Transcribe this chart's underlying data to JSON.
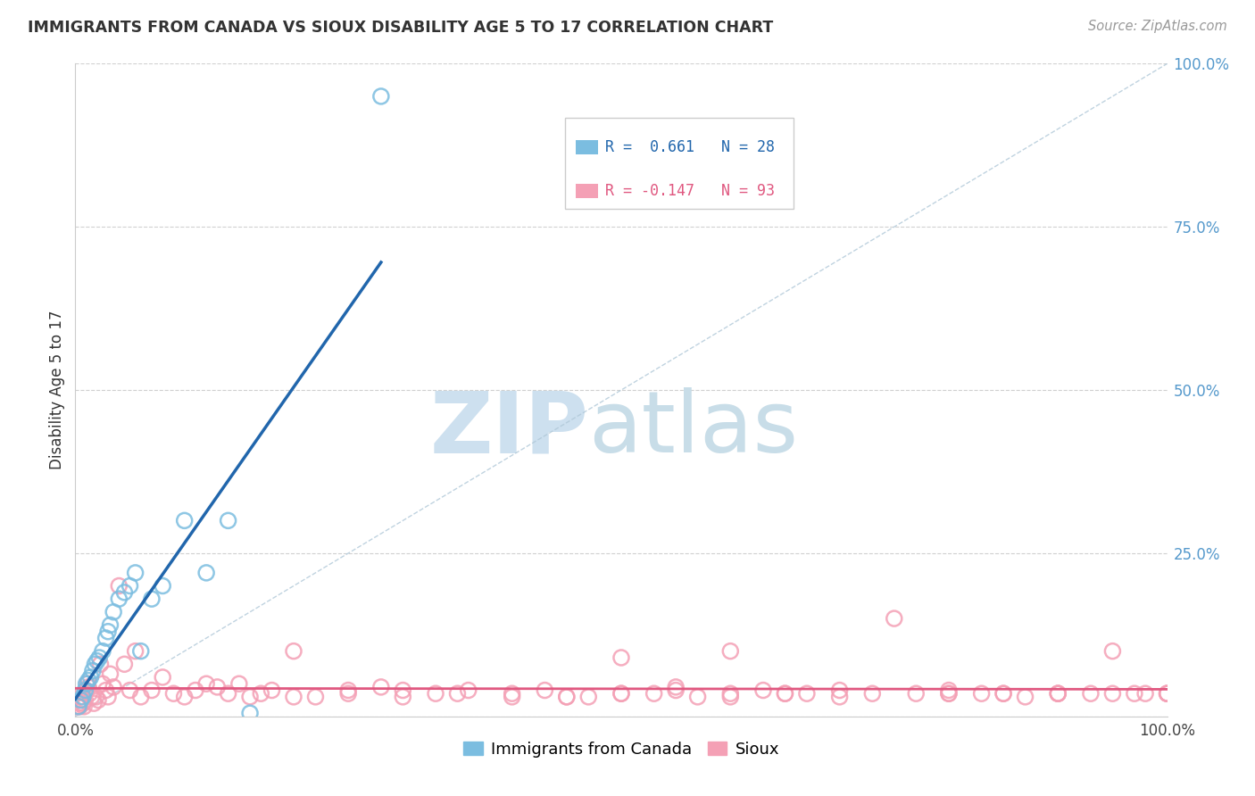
{
  "title": "IMMIGRANTS FROM CANADA VS SIOUX DISABILITY AGE 5 TO 17 CORRELATION CHART",
  "source": "Source: ZipAtlas.com",
  "ylabel": "Disability Age 5 to 17",
  "legend_label1": "Immigrants from Canada",
  "legend_label2": "Sioux",
  "r1": 0.661,
  "n1": 28,
  "r2": -0.147,
  "n2": 93,
  "color_blue": "#7bbde0",
  "color_pink": "#f4a0b5",
  "color_blue_line": "#2166ac",
  "color_pink_line": "#e05880",
  "watermark_zip_color": "#cde0ef",
  "watermark_atlas_color": "#c8dde8",
  "yticks": [
    0,
    25,
    50,
    75,
    100
  ],
  "ytick_labels": [
    "",
    "25.0%",
    "50.0%",
    "75.0%",
    "100.0%"
  ],
  "xtick_labels_left": "0.0%",
  "xtick_labels_right": "100.0%",
  "blue_x": [
    0.3,
    0.5,
    0.7,
    0.9,
    1.0,
    1.2,
    1.4,
    1.6,
    1.8,
    2.0,
    2.2,
    2.5,
    2.8,
    3.0,
    3.2,
    3.5,
    4.0,
    4.5,
    5.0,
    5.5,
    6.0,
    7.0,
    8.0,
    10.0,
    12.0,
    14.0,
    16.0,
    28.0
  ],
  "blue_y": [
    1.5,
    2.5,
    3.0,
    4.0,
    5.0,
    5.5,
    6.0,
    7.0,
    8.0,
    8.5,
    9.0,
    10.0,
    12.0,
    13.0,
    14.0,
    16.0,
    18.0,
    19.0,
    20.0,
    22.0,
    10.0,
    18.0,
    20.0,
    30.0,
    22.0,
    30.0,
    0.5,
    95.0
  ],
  "pink_x": [
    0.2,
    0.3,
    0.4,
    0.5,
    0.6,
    0.7,
    0.8,
    0.9,
    1.0,
    1.1,
    1.2,
    1.3,
    1.5,
    1.7,
    1.9,
    2.1,
    2.3,
    2.5,
    2.8,
    3.0,
    3.2,
    3.5,
    4.0,
    4.5,
    5.0,
    5.5,
    6.0,
    7.0,
    8.0,
    9.0,
    10.0,
    11.0,
    12.0,
    13.0,
    14.0,
    15.0,
    16.0,
    17.0,
    18.0,
    20.0,
    22.0,
    25.0,
    28.0,
    30.0,
    33.0,
    36.0,
    40.0,
    43.0,
    47.0,
    50.0,
    53.0,
    57.0,
    60.0,
    63.0,
    67.0,
    70.0,
    73.0,
    77.0,
    80.0,
    83.0,
    87.0,
    90.0,
    93.0,
    97.0,
    100.0,
    30.0,
    35.0,
    40.0,
    45.0,
    55.0,
    60.0,
    65.0,
    70.0,
    75.0,
    80.0,
    85.0,
    90.0,
    95.0,
    98.0,
    100.0,
    50.0,
    55.0,
    60.0,
    65.0,
    20.0,
    25.0,
    45.0,
    50.0,
    80.0,
    85.0,
    90.0,
    95.0,
    100.0
  ],
  "pink_y": [
    1.5,
    2.0,
    1.5,
    3.0,
    2.5,
    2.0,
    1.5,
    2.5,
    4.0,
    5.0,
    4.5,
    3.5,
    3.0,
    2.0,
    3.0,
    2.5,
    8.0,
    5.0,
    4.0,
    3.0,
    6.5,
    4.5,
    20.0,
    8.0,
    4.0,
    10.0,
    3.0,
    4.0,
    6.0,
    3.5,
    3.0,
    4.0,
    5.0,
    4.5,
    3.5,
    5.0,
    3.0,
    3.5,
    4.0,
    10.0,
    3.0,
    4.0,
    4.5,
    3.0,
    3.5,
    4.0,
    3.5,
    4.0,
    3.0,
    9.0,
    3.5,
    3.0,
    3.0,
    4.0,
    3.5,
    3.0,
    3.5,
    3.5,
    3.5,
    3.5,
    3.0,
    3.5,
    3.5,
    3.5,
    3.5,
    4.0,
    3.5,
    3.0,
    3.0,
    4.0,
    10.0,
    3.5,
    4.0,
    15.0,
    4.0,
    3.5,
    3.5,
    10.0,
    3.5,
    3.5,
    3.5,
    4.5,
    3.5,
    3.5,
    3.0,
    3.5,
    3.0,
    3.5,
    3.5,
    3.5,
    3.5,
    3.5,
    3.5
  ]
}
